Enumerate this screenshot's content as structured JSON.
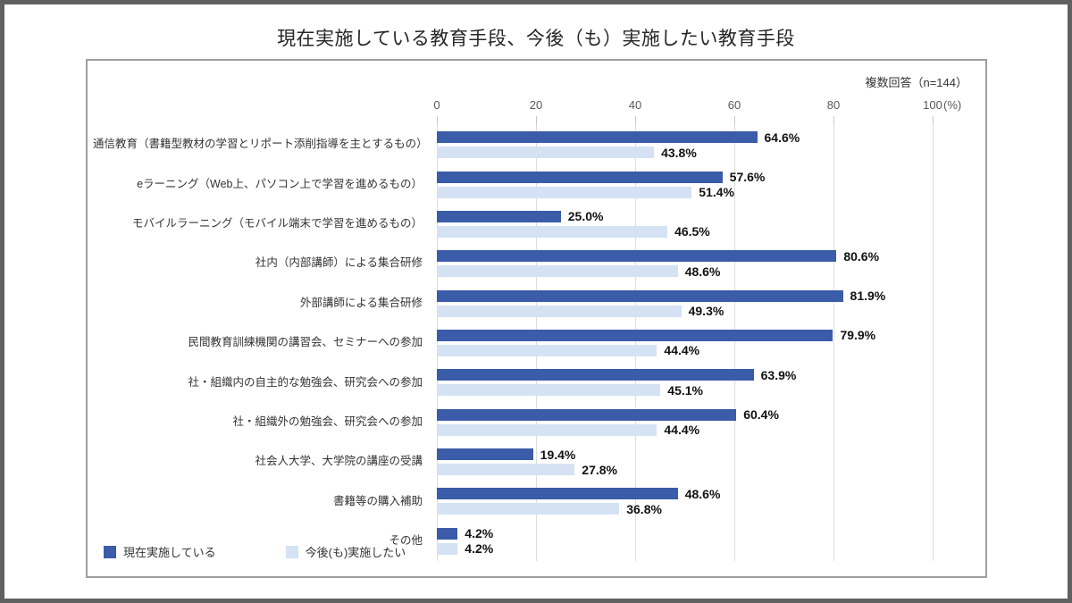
{
  "title": "現在実施している教育手段、今後（も）実施したい教育手段",
  "note": "複数回答（n=144）",
  "chart_data": {
    "type": "bar",
    "orientation": "horizontal",
    "title": "現在実施している教育手段、今後（も）実施したい教育手段",
    "note": "複数回答（n=144）",
    "categories": [
      "通信教育（書籍型教材の学習とリポート添削指導を主とするもの）",
      "eラーニング（Web上、パソコン上で学習を進めるもの）",
      "モバイルラーニング（モバイル端末で学習を進めるもの）",
      "社内（内部講師）による集合研修",
      "外部講師による集合研修",
      "民間教育訓練機関の講習会、セミナーへの参加",
      "社・組織内の自主的な勉強会、研究会への参加",
      "社・組織外の勉強会、研究会への参加",
      "社会人大学、大学院の講座の受講",
      "書籍等の購入補助",
      "その他"
    ],
    "series": [
      {
        "name": "現在実施している",
        "color": "#3A5CA9",
        "values": [
          64.6,
          57.6,
          25.0,
          80.6,
          81.9,
          79.9,
          63.9,
          60.4,
          19.4,
          48.6,
          4.2
        ]
      },
      {
        "name": "今後(も)実施したい",
        "color": "#D4E2F4",
        "values": [
          43.8,
          51.4,
          46.5,
          48.6,
          49.3,
          44.4,
          45.1,
          44.4,
          27.8,
          36.8,
          4.2
        ]
      }
    ],
    "value_suffix": "%",
    "xlim": [
      0,
      100
    ],
    "x_ticks": [
      0,
      20,
      40,
      60,
      80,
      100
    ],
    "x_unit": "(%)",
    "grid": true,
    "legend_position": "bottom-left",
    "colors": {
      "grid": "#dddddd",
      "panel_border": "#9e9e9e",
      "outer_frame": "#616161"
    }
  }
}
